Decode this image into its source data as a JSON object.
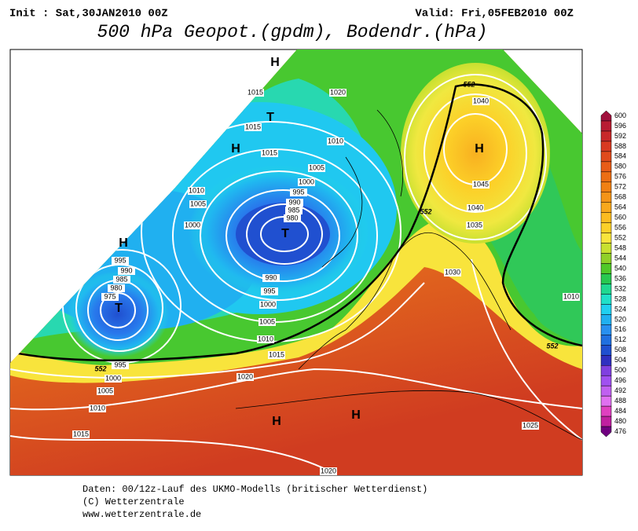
{
  "header": {
    "init": "Init : Sat,30JAN2010 00Z",
    "valid": "Valid: Fri,05FEB2010 00Z",
    "title": "500 hPa Geopot.(gpdm), Bodendr.(hPa)"
  },
  "map": {
    "pressure_labels": [
      "1015",
      "1020",
      "1015",
      "1015",
      "1010",
      "1005",
      "1000",
      "995",
      "990",
      "985",
      "980",
      "1010",
      "1005",
      "1000",
      "995",
      "990",
      "985",
      "980",
      "975",
      "990",
      "995",
      "1000",
      "1005",
      "1010",
      "1015",
      "1040",
      "1045",
      "1040",
      "1035",
      "1030",
      "1010",
      "1020",
      "995",
      "1000",
      "1005",
      "1010",
      "1015",
      "1025",
      "1020"
    ],
    "height_labels": [
      "552",
      "552",
      "552",
      "552"
    ],
    "centers": [
      "H",
      "T",
      "H",
      "T",
      "H",
      "T",
      "H",
      "H",
      "H"
    ]
  },
  "colorbar": {
    "labels": [
      "600",
      "596",
      "592",
      "588",
      "584",
      "580",
      "576",
      "572",
      "568",
      "564",
      "560",
      "556",
      "552",
      "548",
      "544",
      "540",
      "536",
      "532",
      "528",
      "524",
      "520",
      "516",
      "512",
      "508",
      "504",
      "500",
      "496",
      "492",
      "488",
      "484",
      "480",
      "476"
    ]
  },
  "footer": {
    "lines": [
      "Daten: 00/12z-Lauf des UKMO-Modells (britischer Wetterdienst)",
      "(C) Wetterzentrale",
      "www.wetterzentrale.de"
    ]
  }
}
